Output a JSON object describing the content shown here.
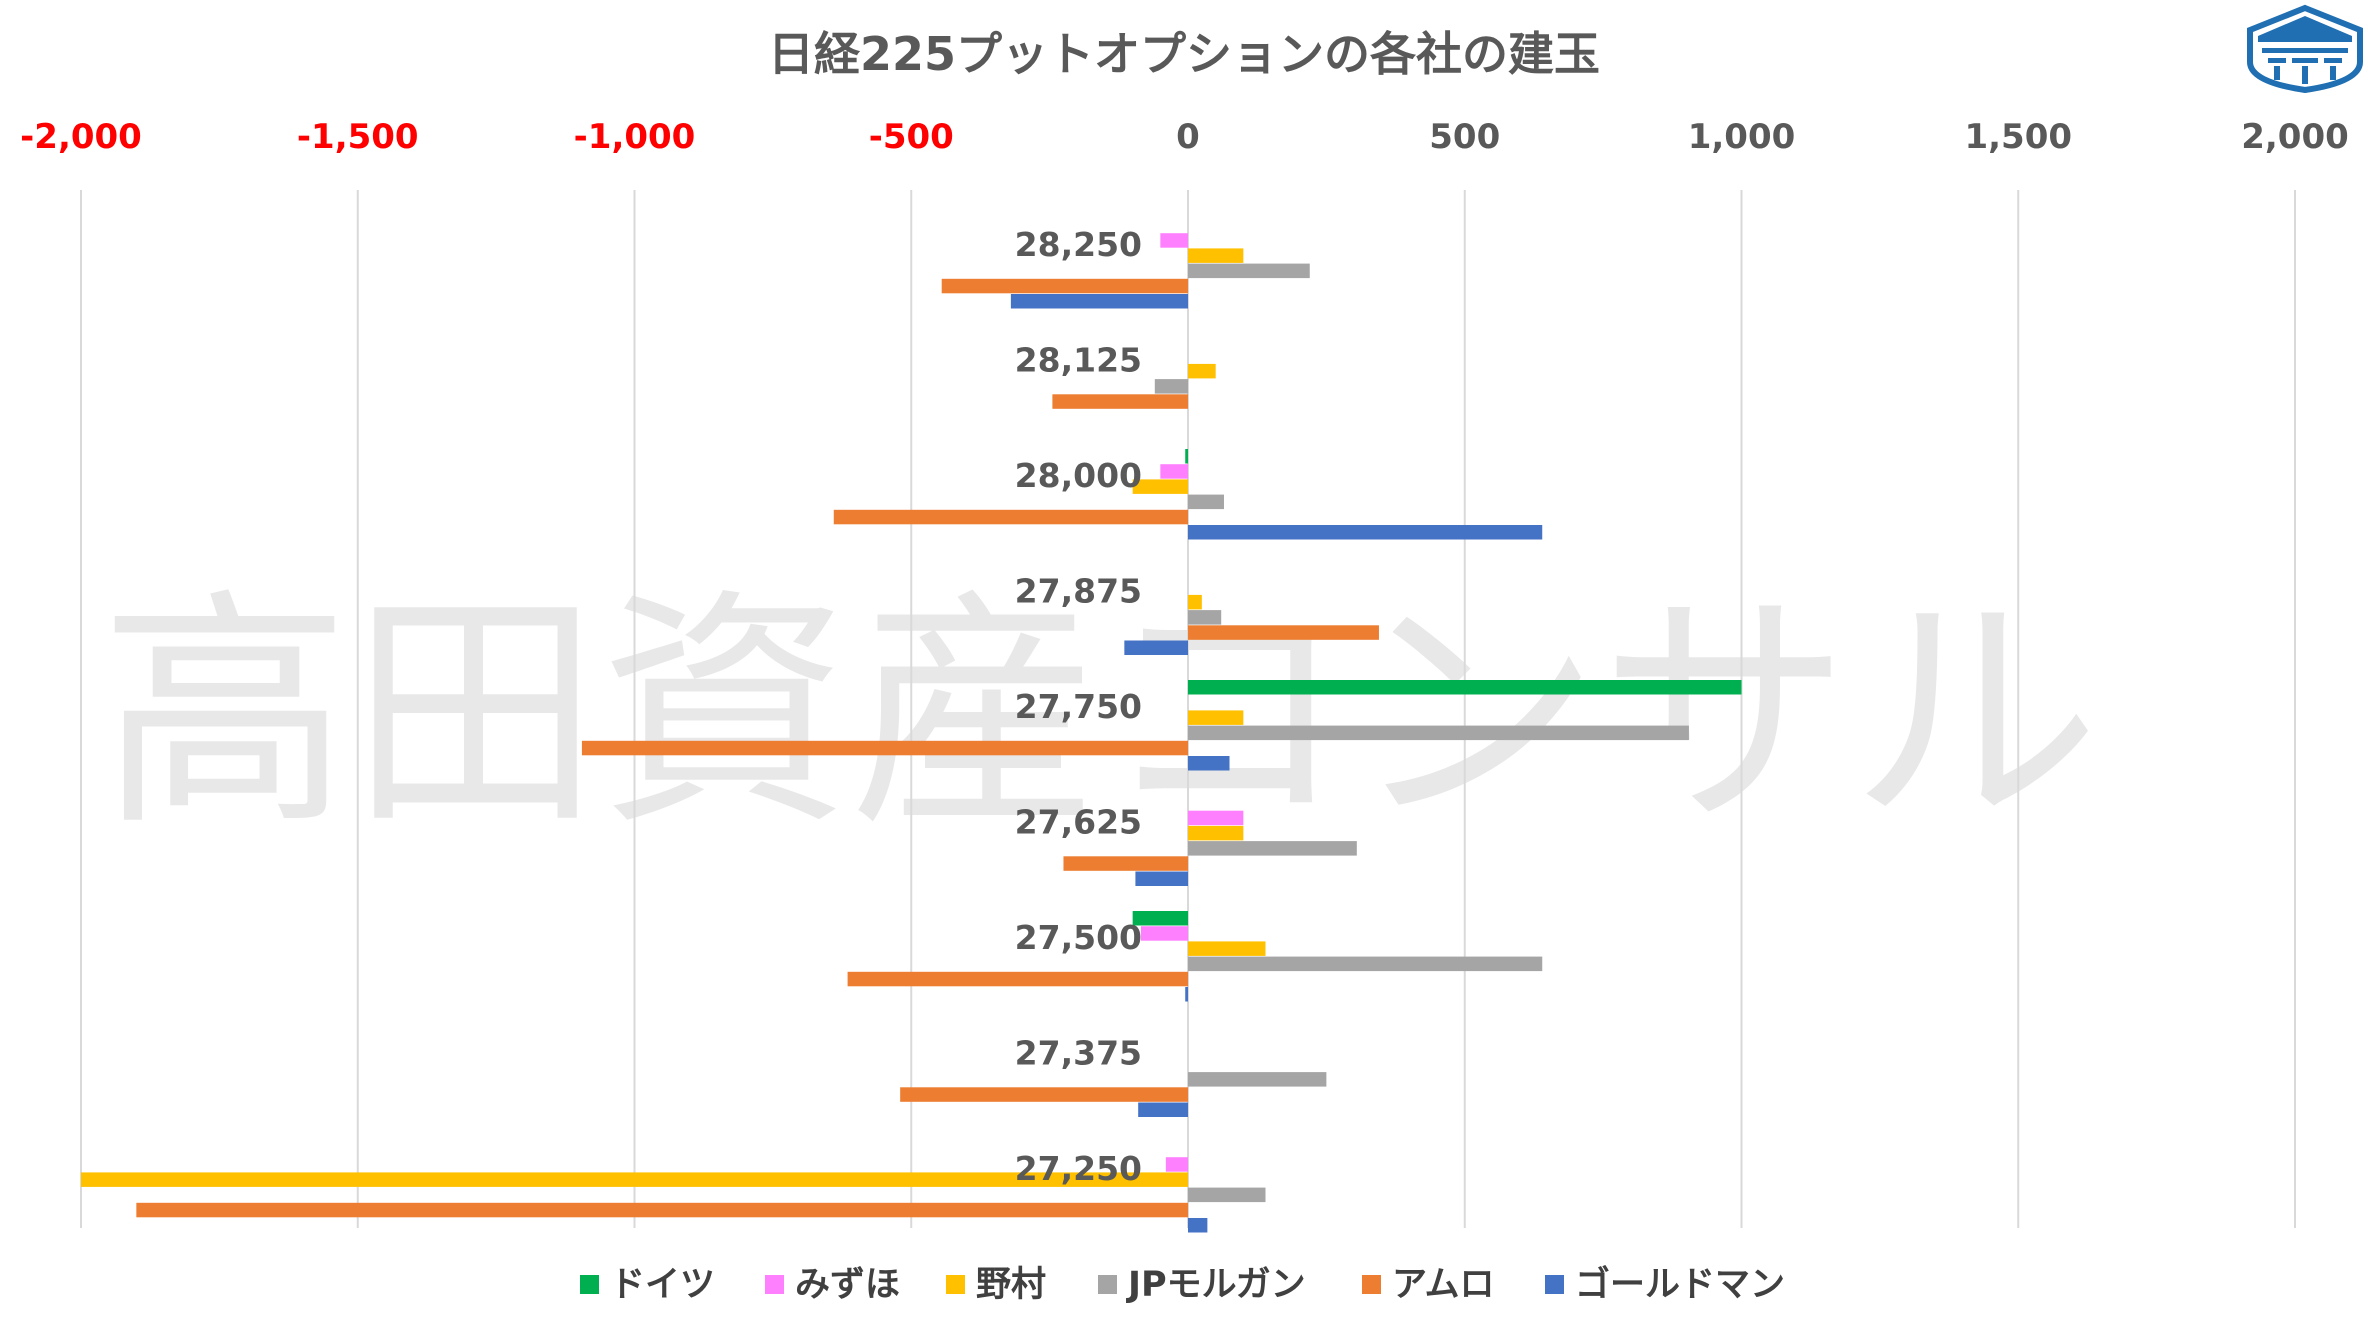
{
  "chart_data": {
    "type": "bar",
    "orientation": "horizontal",
    "title": "日経225プットオプションの各社の建玉",
    "xlim": [
      -2000,
      2000
    ],
    "x_ticks": [
      "-2,000",
      "-1,500",
      "-1,000",
      "-500",
      "0",
      "500",
      "1,000",
      "1,500",
      "2,000"
    ],
    "x_tick_values": [
      -2000,
      -1500,
      -1000,
      -500,
      0,
      500,
      1000,
      1500,
      2000
    ],
    "grid": true,
    "legend_position": "bottom",
    "categories": [
      "28,250",
      "28,125",
      "28,000",
      "27,875",
      "27,750",
      "27,625",
      "27,500",
      "27,375",
      "27,250"
    ],
    "series": [
      {
        "name": "ドイツ",
        "color": "#00b050",
        "values": [
          0,
          0,
          -5,
          0,
          1000,
          0,
          -100,
          0,
          0
        ]
      },
      {
        "name": "みずほ",
        "color": "#ff80ff",
        "values": [
          -50,
          0,
          -50,
          0,
          0,
          100,
          -85,
          0,
          -40
        ]
      },
      {
        "name": "野村",
        "color": "#ffc000",
        "values": [
          100,
          50,
          -100,
          25,
          100,
          100,
          140,
          0,
          -2000
        ]
      },
      {
        "name": "JPモルガン",
        "color": "#a5a5a5",
        "values": [
          220,
          -60,
          65,
          60,
          905,
          305,
          640,
          250,
          140
        ]
      },
      {
        "name": "アムロ",
        "color": "#ed7d31",
        "values": [
          -445,
          -245,
          -640,
          345,
          -1095,
          -225,
          -615,
          -520,
          -1900
        ]
      },
      {
        "name": "ゴールドマン",
        "color": "#4472c4",
        "values": [
          -320,
          0,
          640,
          -115,
          75,
          -95,
          -5,
          -90,
          35
        ]
      }
    ]
  },
  "watermark": "高田資産コンサル",
  "logo": {
    "name": "shield-logo-icon",
    "color": "#1f6fb2"
  }
}
